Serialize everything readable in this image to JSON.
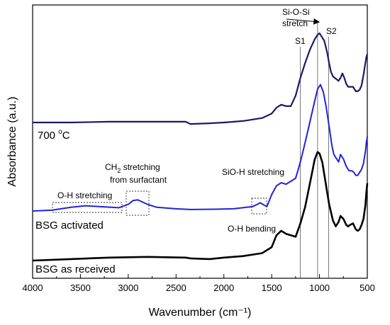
{
  "chart_data": {
    "type": "line",
    "title": "",
    "xlabel": "Wavenumber (cm⁻¹)",
    "ylabel": "Absorbance (a.u.)",
    "x_reversed": true,
    "xlim": [
      4000,
      500
    ],
    "xticks": [
      4000,
      3500,
      3000,
      2500,
      2000,
      1500,
      1000,
      500
    ],
    "xtick_labels": [
      "4000",
      "3500",
      "3000",
      "2500",
      "2000",
      "1500",
      "1000",
      "500"
    ],
    "y_tick_labels_shown": false,
    "grid": false,
    "legend": "none (series labelled directly on plot)",
    "series": [
      {
        "name": "BSG as received",
        "color": "#000000",
        "x": [
          4000,
          3600,
          3200,
          2800,
          2400,
          2350,
          2150,
          2000,
          1800,
          1600,
          1500,
          1450,
          1400,
          1350,
          1300,
          1250,
          1200,
          1150,
          1100,
          1050,
          1020,
          1000,
          970,
          930,
          900,
          860,
          830,
          800,
          780,
          750,
          720,
          700,
          680,
          650,
          620,
          600,
          580,
          560,
          540,
          520,
          510,
          500
        ],
        "y": [
          0.0,
          0.01,
          0.02,
          0.025,
          0.02,
          0.015,
          0.01,
          0.02,
          0.03,
          0.05,
          0.09,
          0.17,
          0.2,
          0.18,
          0.17,
          0.16,
          0.25,
          0.36,
          0.52,
          0.68,
          0.73,
          0.72,
          0.66,
          0.5,
          0.38,
          0.27,
          0.23,
          0.26,
          0.3,
          0.28,
          0.24,
          0.23,
          0.24,
          0.25,
          0.21,
          0.2,
          0.21,
          0.24,
          0.28,
          0.37,
          0.46,
          0.52
        ]
      },
      {
        "name": "BSG activated",
        "color": "#2222dd",
        "x": [
          4000,
          3800,
          3600,
          3450,
          3300,
          3100,
          3000,
          2950,
          2900,
          2850,
          2800,
          2700,
          2500,
          2350,
          2100,
          1900,
          1700,
          1650,
          1620,
          1580,
          1550,
          1500,
          1450,
          1400,
          1350,
          1300,
          1250,
          1200,
          1150,
          1100,
          1050,
          1020,
          990,
          960,
          930,
          900,
          870,
          850,
          820,
          800,
          780,
          750,
          720,
          690,
          660,
          640,
          620,
          600,
          580,
          560,
          540,
          520,
          510,
          500
        ],
        "y": [
          0.0,
          0.005,
          0.025,
          0.035,
          0.03,
          0.022,
          0.045,
          0.07,
          0.075,
          0.06,
          0.045,
          0.025,
          0.015,
          0.01,
          0.012,
          0.015,
          0.03,
          0.045,
          0.055,
          0.04,
          0.03,
          0.11,
          0.17,
          0.19,
          0.18,
          0.2,
          0.22,
          0.33,
          0.46,
          0.6,
          0.74,
          0.82,
          0.85,
          0.8,
          0.7,
          0.57,
          0.44,
          0.38,
          0.35,
          0.33,
          0.38,
          0.35,
          0.3,
          0.27,
          0.27,
          0.26,
          0.24,
          0.24,
          0.26,
          0.28,
          0.32,
          0.4,
          0.46,
          0.5
        ]
      },
      {
        "name": "700 °C",
        "color": "#1a1a66",
        "x": [
          4000,
          3600,
          3200,
          2800,
          2400,
          2350,
          2150,
          2000,
          1800,
          1600,
          1500,
          1450,
          1400,
          1350,
          1300,
          1250,
          1200,
          1150,
          1100,
          1050,
          1020,
          1000,
          980,
          950,
          920,
          900,
          880,
          860,
          840,
          820,
          800,
          780,
          760,
          740,
          720,
          700,
          680,
          650,
          620,
          600,
          580,
          560,
          540,
          520,
          510,
          500
        ],
        "y": [
          0.0,
          0.0,
          0.005,
          0.005,
          0.005,
          -0.01,
          -0.005,
          0.0,
          0.01,
          0.03,
          0.06,
          0.1,
          0.12,
          0.11,
          0.11,
          0.18,
          0.3,
          0.4,
          0.49,
          0.56,
          0.59,
          0.6,
          0.58,
          0.55,
          0.47,
          0.4,
          0.34,
          0.31,
          0.3,
          0.29,
          0.28,
          0.3,
          0.33,
          0.3,
          0.26,
          0.24,
          0.24,
          0.24,
          0.21,
          0.21,
          0.22,
          0.25,
          0.32,
          0.4,
          0.44,
          0.46
        ]
      }
    ],
    "annotations": [
      "Si-O-Si",
      "stretch",
      "S1",
      "S2",
      "CH",
      "2",
      " stretching",
      "from surfactant",
      "SiO-H stretching",
      "O-H stretching",
      "O-H bending"
    ],
    "series_labels": [
      "700 ",
      "o",
      "C",
      "BSG activated",
      "BSG as received"
    ],
    "reference_lines_x": [
      1200,
      1020,
      905
    ]
  }
}
